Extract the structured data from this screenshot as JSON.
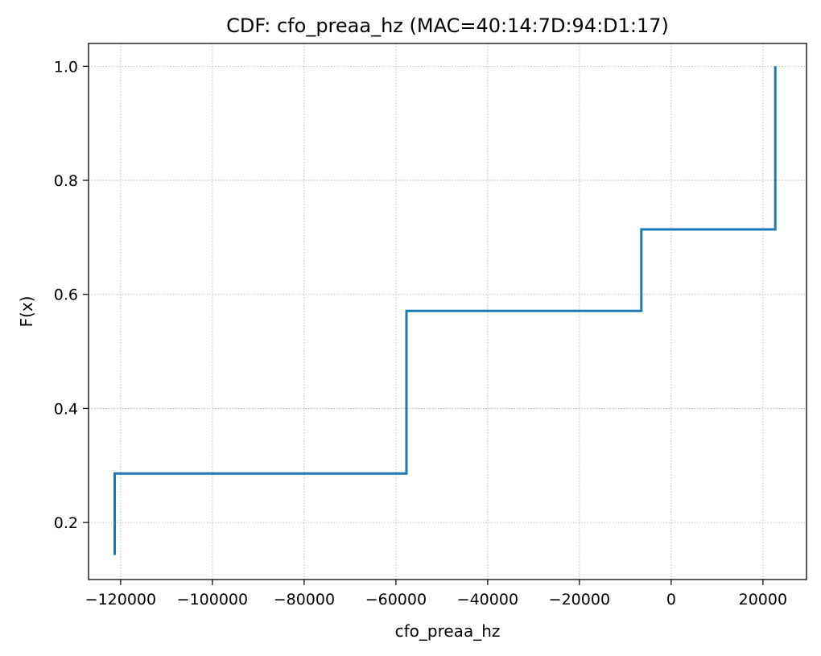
{
  "chart_data": {
    "type": "line",
    "drawstyle": "steps-post",
    "title": "CDF: cfo_preaa_hz (MAC=40:14:7D:94:D1:17)",
    "xlabel": "cfo_preaa_hz",
    "ylabel": "F(x)",
    "xlim": [
      -127000,
      29500
    ],
    "ylim": [
      0.1,
      1.04
    ],
    "xticks": [
      -120000,
      -100000,
      -80000,
      -60000,
      -40000,
      -20000,
      0,
      20000
    ],
    "xtick_labels": [
      "−120000",
      "−100000",
      "−80000",
      "−60000",
      "−40000",
      "−20000",
      "0",
      "20000"
    ],
    "yticks": [
      0.2,
      0.4,
      0.6,
      0.8,
      1.0
    ],
    "ytick_labels": [
      "0.2",
      "0.4",
      "0.6",
      "0.8",
      "1.0"
    ],
    "grid": true,
    "series": [
      {
        "color": "#1f77b4",
        "x": [
          -121300,
          -121300,
          -57700,
          -57700,
          -6500,
          -6500,
          22700,
          22700
        ],
        "y": [
          0.143,
          0.286,
          0.286,
          0.571,
          0.571,
          0.714,
          0.714,
          1.0
        ]
      }
    ]
  }
}
